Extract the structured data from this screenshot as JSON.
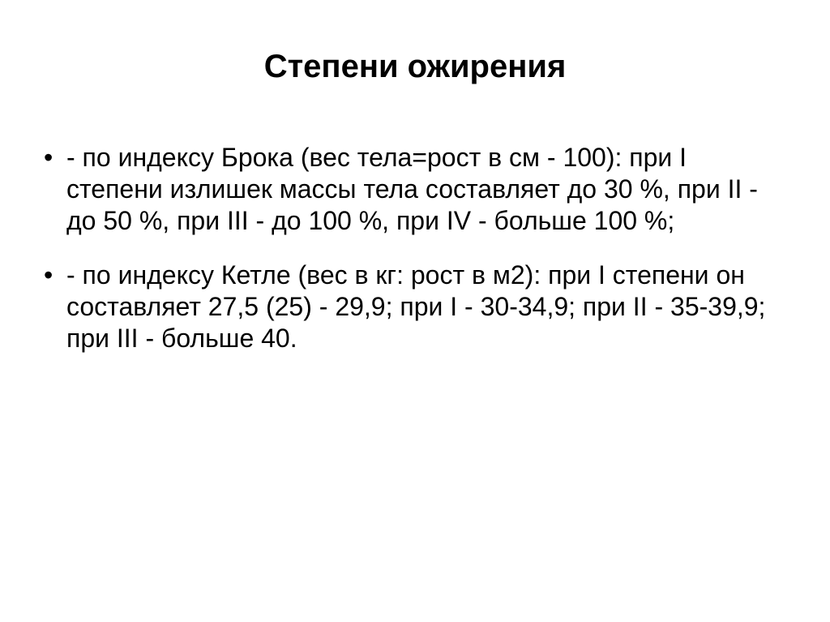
{
  "slide": {
    "title": "Степени ожирения",
    "title_fontsize": 40,
    "title_fontweight": "bold",
    "body_fontsize": 32,
    "background_color": "#ffffff",
    "text_color": "#000000",
    "bullets": [
      "- по индексу Брока (вес тела=рост в см - 100): при I степени излишек массы тела составляет до 30 %, при II - до 50 %, при III - до 100 %, при IV - больше 100 %;",
      "- по индексу Кетле (вес в кг: рост в м2): при I степени он составляет 27,5 (25) - 29,9; при I - 30-34,9; при II - 35-39,9; при III - больше 40."
    ]
  }
}
